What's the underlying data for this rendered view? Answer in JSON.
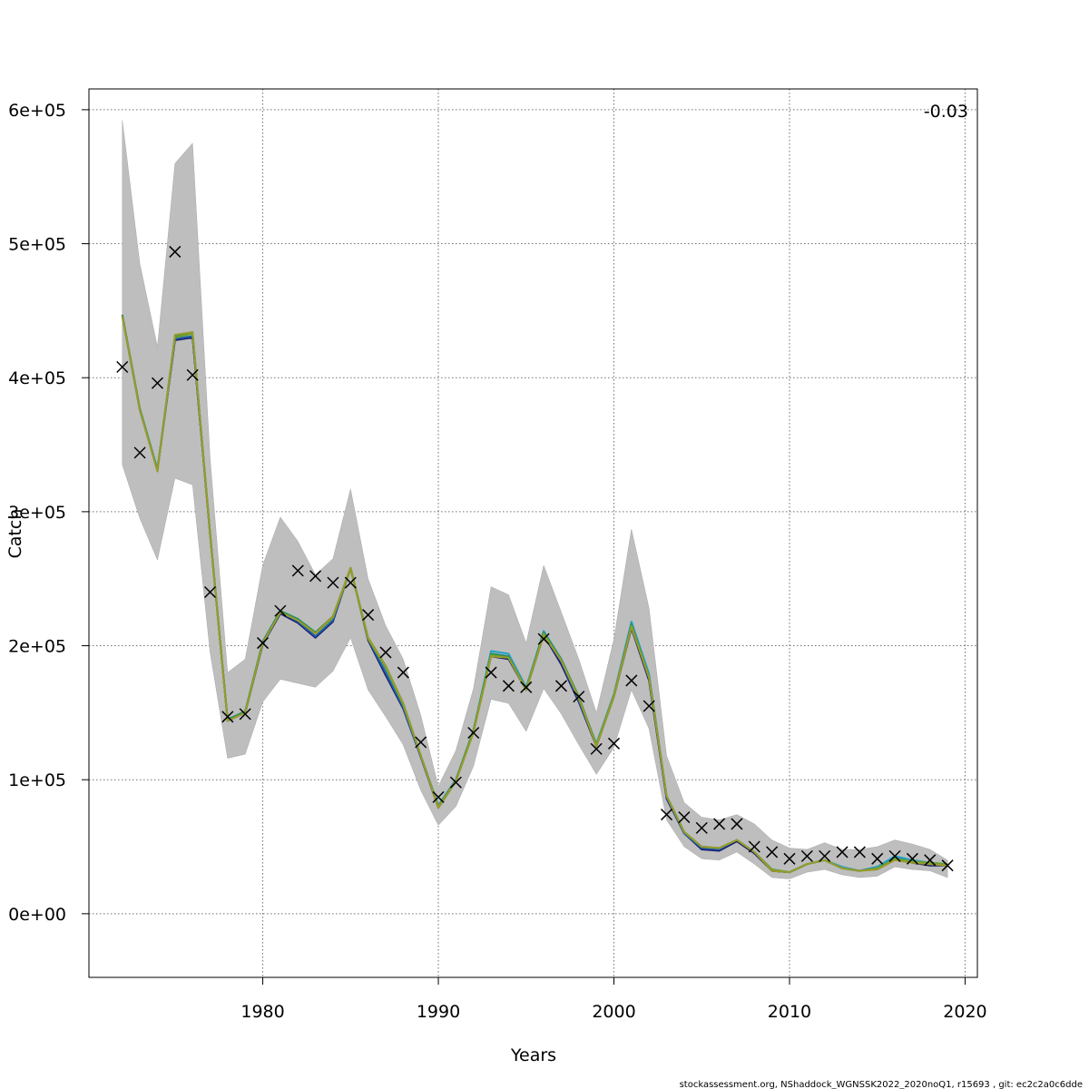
{
  "chart_data": {
    "type": "line",
    "title": "",
    "xlabel": "Years",
    "ylabel": "Catch",
    "annotation": "-0.03",
    "footer": "stockassessment.org, NShaddock_WGNSSK2022_2020noQ1, r15693 , git: ec2c2a0c6dde",
    "xlim": [
      1970.1,
      2020.7
    ],
    "ylim": [
      -47500,
      615500
    ],
    "x_ticks": [
      1980,
      1990,
      2000,
      2010,
      2020
    ],
    "x_tick_labels": [
      "1980",
      "1990",
      "2000",
      "2010",
      "2020"
    ],
    "y_ticks": [
      0,
      100000,
      200000,
      300000,
      400000,
      500000,
      600000
    ],
    "y_tick_labels": [
      "0e+00",
      "1e+05",
      "2e+05",
      "3e+05",
      "4e+05",
      "5e+05",
      "6e+05"
    ],
    "grid": true,
    "colors": {
      "band": "#bebebe",
      "band_edge": "#a8a8a8",
      "grid": "#707070",
      "series": [
        "#1a1a6e",
        "#1f5fa8",
        "#22a0c8",
        "#1e8e5a",
        "#6aa12c",
        "#9a9a2a"
      ]
    },
    "years": [
      1972,
      1973,
      1974,
      1975,
      1976,
      1977,
      1978,
      1979,
      1980,
      1981,
      1982,
      1983,
      1984,
      1985,
      1986,
      1987,
      1988,
      1989,
      1990,
      1991,
      1992,
      1993,
      1994,
      1995,
      1996,
      1997,
      1998,
      1999,
      2000,
      2001,
      2002,
      2003,
      2004,
      2005,
      2006,
      2007,
      2008,
      2009,
      2010,
      2011,
      2012,
      2013,
      2014,
      2015,
      2016,
      2017,
      2018,
      2019
    ],
    "band_upper": [
      592000,
      485000,
      423000,
      560000,
      575000,
      340000,
      180000,
      190000,
      260000,
      296000,
      278000,
      253000,
      265000,
      317000,
      250000,
      215000,
      190000,
      148000,
      95000,
      122000,
      168000,
      244000,
      238000,
      202000,
      260000,
      225000,
      190000,
      150000,
      205000,
      287000,
      228000,
      118000,
      83000,
      72000,
      70000,
      74000,
      67000,
      55000,
      49000,
      48000,
      53000,
      48000,
      48000,
      50000,
      55000,
      52000,
      48000,
      40000
    ],
    "band_lower": [
      335000,
      295000,
      264000,
      325000,
      320000,
      195000,
      116000,
      119000,
      158000,
      175000,
      172000,
      169000,
      181000,
      206000,
      167000,
      147000,
      126000,
      92000,
      66000,
      80000,
      110000,
      160000,
      157000,
      136000,
      168000,
      149000,
      126000,
      104000,
      124000,
      167000,
      138000,
      70000,
      50000,
      41000,
      40000,
      46000,
      37000,
      27000,
      26000,
      31000,
      33000,
      29000,
      27000,
      28000,
      35000,
      33000,
      32000,
      27000
    ],
    "series": [
      {
        "values": [
          446000,
          376000,
          331000,
          428000,
          430000,
          283000,
          144000,
          150000,
          201000,
          224000,
          217000,
          206000,
          218000,
          258000,
          204000,
          178000,
          153000,
          117000,
          79000,
          99000,
          136000,
          192000,
          190000,
          167000,
          208000,
          186000,
          158000,
          125000,
          162000,
          213000,
          174000,
          86000,
          60000,
          48000,
          47000,
          54000,
          45000,
          32000,
          31000,
          37000,
          40000,
          34000,
          32000,
          35000,
          42000,
          38000,
          36000,
          36000
        ]
      },
      {
        "values": [
          446000,
          376000,
          331000,
          429000,
          431000,
          283000,
          144000,
          150000,
          201000,
          225000,
          218000,
          207000,
          219000,
          258000,
          205000,
          180000,
          154000,
          117000,
          80000,
          99000,
          136000,
          194000,
          192000,
          168000,
          209000,
          188000,
          159000,
          126000,
          163000,
          215000,
          176000,
          87000,
          60000,
          49000,
          48000,
          55000,
          46000,
          32000,
          31000,
          37000,
          40000,
          34000,
          32000,
          35000,
          42000,
          39000,
          37000,
          36000
        ]
      },
      {
        "values": [
          447000,
          377000,
          332000,
          431000,
          433000,
          284000,
          145000,
          151000,
          203000,
          226000,
          220000,
          209000,
          221000,
          258000,
          206000,
          183000,
          156000,
          118000,
          81000,
          100000,
          137000,
          196000,
          194000,
          169000,
          211000,
          190000,
          161000,
          127000,
          164000,
          218000,
          179000,
          88000,
          61000,
          50000,
          49000,
          55000,
          46000,
          33000,
          31000,
          37000,
          40000,
          35000,
          32000,
          35000,
          43000,
          40000,
          38000,
          37000
        ]
      },
      {
        "values": [
          447000,
          377000,
          331000,
          431000,
          434000,
          284000,
          145000,
          151000,
          203000,
          226000,
          220000,
          210000,
          222000,
          258000,
          206000,
          185000,
          157000,
          118000,
          80000,
          100000,
          137000,
          194000,
          192000,
          168000,
          210000,
          190000,
          162000,
          126000,
          163000,
          216000,
          177000,
          88000,
          61000,
          50000,
          49000,
          55000,
          46000,
          33000,
          31000,
          37000,
          40000,
          34000,
          32000,
          34000,
          41000,
          39000,
          38000,
          37000
        ]
      },
      {
        "values": [
          446000,
          376000,
          331000,
          430000,
          433000,
          283000,
          144000,
          150000,
          202000,
          225000,
          219000,
          209000,
          221000,
          257000,
          205000,
          184000,
          156000,
          118000,
          80000,
          99000,
          136000,
          193000,
          191000,
          168000,
          209000,
          189000,
          161000,
          126000,
          163000,
          215000,
          177000,
          88000,
          61000,
          50000,
          49000,
          55000,
          46000,
          33000,
          31000,
          37000,
          40000,
          34000,
          32000,
          34000,
          41000,
          39000,
          38000,
          37000
        ]
      },
      {
        "values": [
          446000,
          376000,
          330000,
          432000,
          434000,
          283000,
          144000,
          150000,
          202000,
          225000,
          219000,
          209000,
          222000,
          258000,
          206000,
          185000,
          157000,
          118000,
          79000,
          99000,
          135000,
          192000,
          191000,
          167000,
          208000,
          189000,
          161000,
          125000,
          162000,
          214000,
          176000,
          88000,
          61000,
          50000,
          49000,
          55000,
          46000,
          32000,
          31000,
          37000,
          40000,
          34000,
          32000,
          33000,
          40000,
          38000,
          37000,
          36000
        ]
      }
    ],
    "observed": [
      408000,
      344000,
      396000,
      494000,
      402000,
      240000,
      147000,
      149000,
      202000,
      226000,
      256000,
      252000,
      247000,
      247000,
      223000,
      195000,
      180000,
      128000,
      87000,
      98000,
      135000,
      180000,
      170000,
      169000,
      205000,
      170000,
      162000,
      123000,
      127000,
      174000,
      155000,
      74000,
      72000,
      64000,
      67000,
      67000,
      50000,
      46000,
      41000,
      43000,
      43000,
      46000,
      46000,
      41000,
      43000,
      41000,
      40000,
      36000
    ]
  }
}
